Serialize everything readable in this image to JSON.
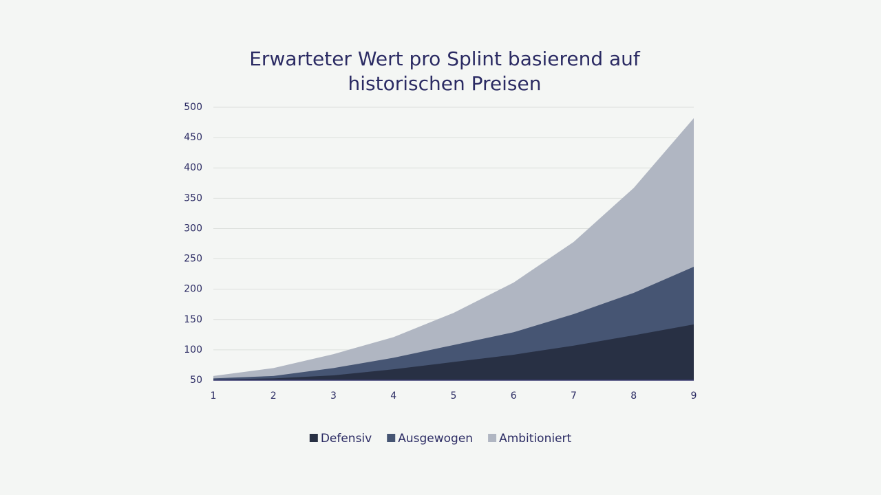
{
  "chart_data": {
    "type": "area",
    "title": "Erwarteter Wert pro Splint basierend auf historischen Preisen",
    "x": [
      1,
      2,
      3,
      4,
      5,
      6,
      7,
      8,
      9
    ],
    "series": [
      {
        "name": "Defensiv",
        "color": "#283044",
        "values": [
          51,
          53,
          58,
          68,
          80,
          92,
          107,
          124,
          142
        ]
      },
      {
        "name": "Ausgewogen",
        "color": "#465573",
        "values": [
          53,
          57,
          70,
          87,
          108,
          129,
          159,
          194,
          237
        ]
      },
      {
        "name": "Ambitioniert",
        "color": "#b0b6c2",
        "values": [
          57,
          70,
          93,
          121,
          161,
          211,
          278,
          367,
          482
        ]
      }
    ],
    "xlim": [
      1,
      9
    ],
    "xticks": [
      1,
      2,
      3,
      4,
      5,
      6,
      7,
      8,
      9
    ],
    "ylim": [
      50,
      500
    ],
    "yticks": [
      50,
      100,
      150,
      200,
      250,
      300,
      350,
      400,
      450,
      500
    ],
    "grid": true,
    "legend": "bottom"
  }
}
